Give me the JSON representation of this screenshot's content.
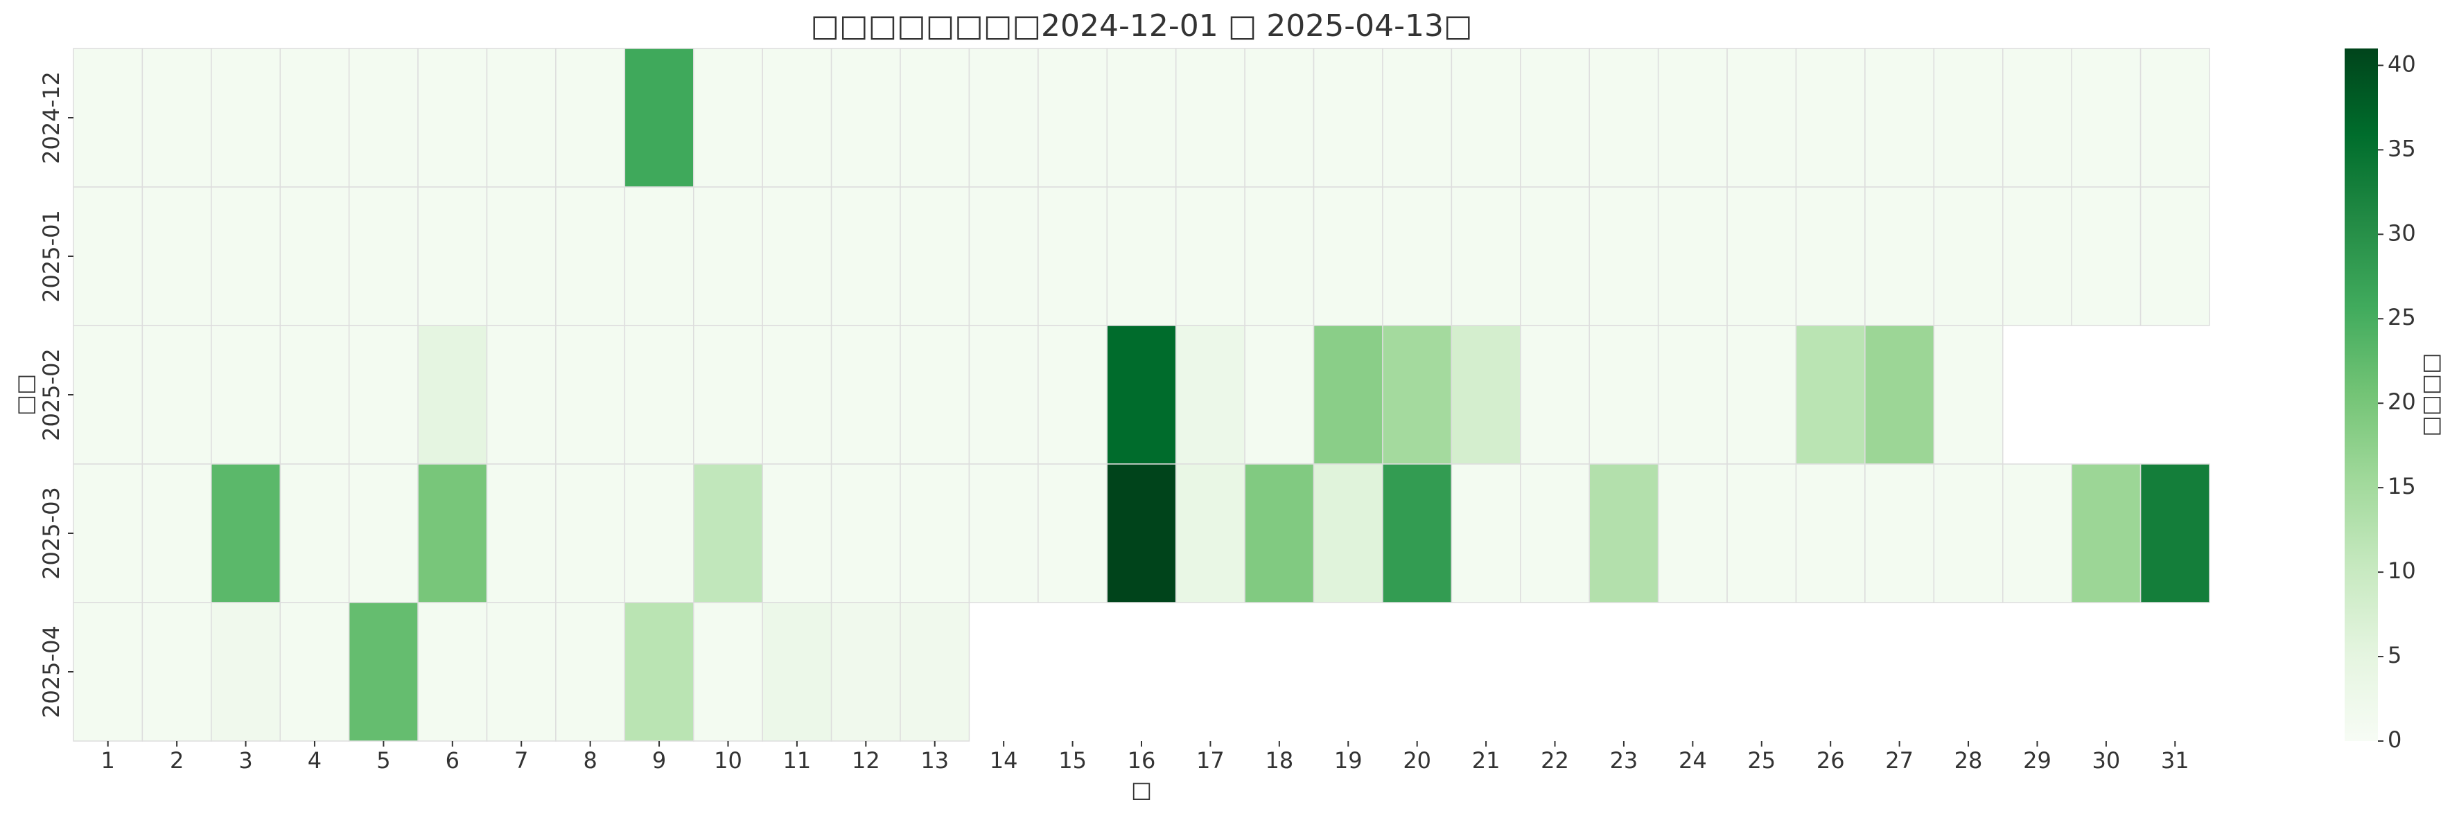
{
  "chart_data": {
    "type": "heatmap",
    "title": "□□□□□□□□2024-12-01 □ 2025-04-13□",
    "x_label": "□",
    "y_label": "□□",
    "colorbar_label": "□□□□",
    "x": [
      1,
      2,
      3,
      4,
      5,
      6,
      7,
      8,
      9,
      10,
      11,
      12,
      13,
      14,
      15,
      16,
      17,
      18,
      19,
      20,
      21,
      22,
      23,
      24,
      25,
      26,
      27,
      28,
      29,
      30,
      31
    ],
    "y": [
      "2024-12",
      "2025-01",
      "2025-02",
      "2025-03",
      "2025-04"
    ],
    "values": [
      [
        1,
        1,
        1,
        1,
        1,
        1,
        1,
        1,
        26,
        1,
        1,
        1,
        1,
        1,
        1,
        1,
        1,
        1,
        1,
        1,
        1,
        1,
        1,
        1,
        1,
        1,
        1,
        1,
        1,
        1,
        1
      ],
      [
        1,
        1,
        1,
        1,
        1,
        1,
        1,
        1,
        1,
        1,
        1,
        1,
        1,
        1,
        1,
        1,
        1,
        1,
        1,
        1,
        1,
        1,
        1,
        1,
        1,
        1,
        1,
        1,
        1,
        1,
        1
      ],
      [
        1,
        1,
        1,
        1,
        1,
        5,
        1,
        1,
        1,
        1,
        1,
        1,
        1,
        1,
        1,
        36,
        3,
        1,
        18,
        15,
        8,
        1,
        1,
        1,
        1,
        12,
        16,
        1,
        null,
        null,
        null
      ],
      [
        1,
        1,
        23,
        1,
        1,
        20,
        1,
        1,
        1,
        11,
        1,
        1,
        1,
        1,
        1,
        41,
        4,
        19,
        6,
        28,
        1,
        1,
        13,
        1,
        1,
        1,
        1,
        1,
        1,
        16,
        33
      ],
      [
        1,
        1,
        2,
        1,
        22,
        1,
        1,
        1,
        12,
        1,
        3,
        2,
        2,
        null,
        null,
        null,
        null,
        null,
        null,
        null,
        null,
        null,
        null,
        null,
        null,
        null,
        null,
        null,
        null,
        null,
        null
      ]
    ],
    "colormap": [
      "#f7fcf5",
      "#e5f5e0",
      "#c7e9c0",
      "#a1d99b",
      "#74c476",
      "#41ab5d",
      "#238b45",
      "#006d2c",
      "#00441b"
    ],
    "clim": [
      0,
      41
    ],
    "cticks": [
      0,
      5,
      10,
      15,
      20,
      25,
      30,
      35,
      40
    ]
  }
}
